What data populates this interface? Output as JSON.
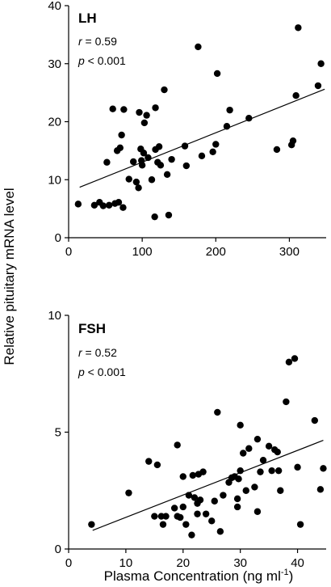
{
  "y_axis_label": "Relative pituitary mRNA level",
  "x_axis_label": "Plasma Concentration (ng ml",
  "x_axis_label_sup": "-1",
  "x_axis_label_close": ")",
  "colors": {
    "points": "#000000",
    "axes": "#000000",
    "fit_line": "#000000"
  },
  "chart_data": [
    {
      "type": "scatter",
      "panel_label": "LH",
      "stat_r_var": "r",
      "stat_r_val": " = 0.59",
      "stat_p_var": "p",
      "stat_p_val": " < 0.001",
      "xlim": [
        0,
        350
      ],
      "ylim": [
        0,
        40
      ],
      "xticks": [
        0,
        100,
        200,
        300
      ],
      "yticks": [
        0,
        10,
        20,
        30,
        40
      ],
      "xtick_labels": [
        "0",
        "100",
        "200",
        "300"
      ],
      "ytick_labels": [
        "0",
        "10",
        "20",
        "30",
        "40"
      ],
      "fit_line": [
        [
          15,
          8.7
        ],
        [
          348,
          25.6
        ]
      ],
      "points": [
        [
          13,
          5.8
        ],
        [
          35,
          5.6
        ],
        [
          42,
          6.1
        ],
        [
          47,
          5.5
        ],
        [
          52,
          13
        ],
        [
          55,
          5.6
        ],
        [
          60,
          22.2
        ],
        [
          63,
          5.9
        ],
        [
          66,
          15
        ],
        [
          68,
          6.1
        ],
        [
          70,
          15.5
        ],
        [
          72,
          17.7
        ],
        [
          74,
          5.2
        ],
        [
          75,
          22.1
        ],
        [
          82,
          10.1
        ],
        [
          88,
          13.1
        ],
        [
          92,
          9.6
        ],
        [
          95,
          8.6
        ],
        [
          96,
          21.6
        ],
        [
          98,
          15.3
        ],
        [
          99,
          13.3
        ],
        [
          100,
          12.5
        ],
        [
          102,
          14.6
        ],
        [
          103,
          19.8
        ],
        [
          106,
          21.1
        ],
        [
          108,
          13.8
        ],
        [
          113,
          10
        ],
        [
          117,
          3.6
        ],
        [
          118,
          15.2
        ],
        [
          118,
          22.4
        ],
        [
          121,
          13
        ],
        [
          123,
          15.7
        ],
        [
          125,
          12.5
        ],
        [
          130,
          25.5
        ],
        [
          134,
          10.9
        ],
        [
          136,
          3.9
        ],
        [
          140,
          13.5
        ],
        [
          158,
          15.8
        ],
        [
          160,
          12.4
        ],
        [
          176,
          32.9
        ],
        [
          181,
          14.1
        ],
        [
          196,
          14.8
        ],
        [
          200,
          16.1
        ],
        [
          202,
          28.3
        ],
        [
          215,
          19.2
        ],
        [
          219,
          22
        ],
        [
          245,
          20.6
        ],
        [
          283,
          15.2
        ],
        [
          303,
          16
        ],
        [
          305,
          16.7
        ],
        [
          309,
          24.5
        ],
        [
          312,
          36.2
        ],
        [
          339,
          26.2
        ],
        [
          343,
          30
        ]
      ]
    },
    {
      "type": "scatter",
      "panel_label": "FSH",
      "stat_r_var": "r",
      "stat_r_val": " = 0.52",
      "stat_p_var": "p",
      "stat_p_val": " < 0.001",
      "xlim": [
        0,
        45
      ],
      "ylim": [
        0,
        10
      ],
      "xticks": [
        0,
        10,
        20,
        30,
        40
      ],
      "yticks": [
        0,
        5,
        10
      ],
      "xtick_labels": [
        "0",
        "10",
        "20",
        "30",
        "40"
      ],
      "ytick_labels": [
        "0",
        "5",
        "10"
      ],
      "fit_line": [
        [
          4.2,
          0.8
        ],
        [
          44.5,
          4.65
        ]
      ],
      "points": [
        [
          4,
          1.05
        ],
        [
          10.5,
          2.4
        ],
        [
          14,
          3.75
        ],
        [
          15,
          1.4
        ],
        [
          15.5,
          3.6
        ],
        [
          16.2,
          1.4
        ],
        [
          16.5,
          1.05
        ],
        [
          17,
          1.4
        ],
        [
          18.5,
          1.75
        ],
        [
          19,
          1.4
        ],
        [
          19,
          4.45
        ],
        [
          19.5,
          1.35
        ],
        [
          20,
          1.8
        ],
        [
          20,
          3.1
        ],
        [
          20.5,
          1.05
        ],
        [
          21,
          2.3
        ],
        [
          21.5,
          0.6
        ],
        [
          21.7,
          3.15
        ],
        [
          22,
          2.2
        ],
        [
          22.5,
          1.5
        ],
        [
          22.5,
          1.95
        ],
        [
          22.7,
          3.2
        ],
        [
          23,
          2.1
        ],
        [
          23.5,
          3.3
        ],
        [
          24,
          1.5
        ],
        [
          25,
          1.2
        ],
        [
          25.5,
          2.05
        ],
        [
          26,
          5.85
        ],
        [
          26.5,
          0.75
        ],
        [
          27,
          2.3
        ],
        [
          28,
          2.85
        ],
        [
          28.5,
          3.05
        ],
        [
          29,
          3.1
        ],
        [
          29.5,
          1.8
        ],
        [
          29.5,
          2.15
        ],
        [
          29.7,
          3.0
        ],
        [
          30,
          5.3
        ],
        [
          30,
          3.35
        ],
        [
          30.5,
          4.1
        ],
        [
          31,
          2.5
        ],
        [
          31.5,
          4.3
        ],
        [
          32.5,
          2.65
        ],
        [
          33,
          1.6
        ],
        [
          33,
          4.7
        ],
        [
          33.5,
          3.3
        ],
        [
          34,
          3.8
        ],
        [
          35,
          4.4
        ],
        [
          35.5,
          3.35
        ],
        [
          36,
          4.25
        ],
        [
          36.5,
          4.15
        ],
        [
          36.7,
          3.35
        ],
        [
          37,
          2.5
        ],
        [
          38,
          6.3
        ],
        [
          38.5,
          8.0
        ],
        [
          39.5,
          8.15
        ],
        [
          40,
          3.5
        ],
        [
          40.5,
          1.05
        ],
        [
          43,
          5.5
        ],
        [
          44,
          2.55
        ],
        [
          44.5,
          3.45
        ]
      ]
    }
  ]
}
